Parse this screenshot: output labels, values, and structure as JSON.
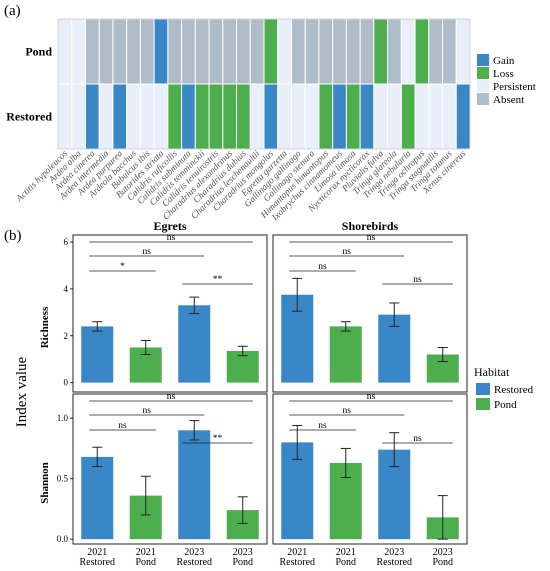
{
  "panel_labels": {
    "a": "(a)",
    "b": "(b)"
  },
  "colors": {
    "gain": "#3a87c7",
    "loss": "#4cae4c",
    "persistent": "#e8eff9",
    "absent": "#b1bcca",
    "restored": "#3a87c7",
    "pond": "#4cae4c"
  },
  "chart_data": [
    {
      "type": "heatmap",
      "rows": [
        "Pond",
        "Restored"
      ],
      "legend": {
        "gain": "Gain",
        "loss": "Loss",
        "persistent": "Persistent",
        "absent": "Absent"
      },
      "species": [
        "Actitis hypoleucos",
        "Ardea alba",
        "Ardea cinerea",
        "Ardea intermedia",
        "Ardea purpurea",
        "Ardeola bacchus",
        "Bubulcus ibis",
        "Butorides striata",
        "Calidris ruficollis",
        "Calidris subminuta",
        "Calidris temminckii",
        "Calidris tenuirostris",
        "Charadrius alexandrinus",
        "Charadrius dubius",
        "Charadrius leschenaultii",
        "Charadrius mongolus",
        "Egretta garzetta",
        "Gallinago gallinago",
        "Gallinago stenura",
        "Himantopus himantopus",
        "Ixobrychus cinnamomeus",
        "Limosa limosa",
        "Nycticorax nycticorax",
        "Pluvialis fulva",
        "Tringa glareola",
        "Tringa nebularia",
        "Tringa ochropus",
        "Tringa stagnatilis",
        "Tringa totanus",
        "Xenus cinereus"
      ],
      "cells": {
        "Pond": [
          "P",
          "P",
          "A",
          "A",
          "A",
          "A",
          "A",
          "G",
          "A",
          "A",
          "A",
          "A",
          "A",
          "A",
          "A",
          "L",
          "P",
          "A",
          "A",
          "A",
          "A",
          "A",
          "A",
          "L",
          "A",
          "P",
          "L",
          "A",
          "A",
          "P"
        ],
        "Restored": [
          "P",
          "P",
          "G",
          "P",
          "G",
          "P",
          "P",
          "P",
          "L",
          "G",
          "L",
          "L",
          "L",
          "L",
          "P",
          "G",
          "P",
          "P",
          "P",
          "L",
          "G",
          "L",
          "G",
          "P",
          "P",
          "L",
          "P",
          "P",
          "P",
          "G"
        ]
      }
    },
    {
      "type": "bar",
      "title": "Egrets",
      "ylabel": "Richness",
      "ylim": [
        -0.4,
        6.3
      ],
      "yticks": [
        0,
        2,
        4,
        6
      ],
      "categories": [
        "2021 Restored",
        "2021 Pond",
        "2023 Restored",
        "2023 Pond"
      ],
      "values": [
        2.4,
        1.5,
        3.3,
        1.35
      ],
      "errors": [
        0.2,
        0.3,
        0.35,
        0.2
      ],
      "comparisons": [
        {
          "from": 0,
          "to": 3,
          "label": "ns"
        },
        {
          "from": 0,
          "to": 2,
          "label": "ns"
        },
        {
          "from": 0,
          "to": 1,
          "label": "*"
        },
        {
          "from": 2,
          "to": 3,
          "label": "**"
        }
      ]
    },
    {
      "type": "bar",
      "title": "Shorebirds",
      "ylabel": "",
      "ylim": [
        -0.4,
        6.3
      ],
      "categories": [
        "2021 Restored",
        "2021 Pond",
        "2023 Restored",
        "2023 Pond"
      ],
      "values": [
        3.75,
        2.4,
        2.9,
        1.2
      ],
      "errors": [
        0.7,
        0.2,
        0.5,
        0.3
      ],
      "comparisons": [
        {
          "from": 0,
          "to": 3,
          "label": "ns"
        },
        {
          "from": 0,
          "to": 2,
          "label": "ns"
        },
        {
          "from": 0,
          "to": 1,
          "label": "ns"
        },
        {
          "from": 2,
          "to": 3,
          "label": "ns"
        }
      ]
    },
    {
      "type": "bar",
      "title": "",
      "ylabel": "Shannon",
      "ylim": [
        -0.04,
        1.2
      ],
      "yticks": [
        0.0,
        0.5,
        1.0
      ],
      "categories": [
        "2021 Restored",
        "2021 Pond",
        "2023 Restored",
        "2023 Pond"
      ],
      "values": [
        0.68,
        0.36,
        0.9,
        0.24
      ],
      "errors": [
        0.08,
        0.16,
        0.08,
        0.11
      ],
      "comparisons": [
        {
          "from": 0,
          "to": 3,
          "label": "ns"
        },
        {
          "from": 0,
          "to": 2,
          "label": "ns"
        },
        {
          "from": 0,
          "to": 1,
          "label": "ns"
        },
        {
          "from": 2,
          "to": 3,
          "label": "**"
        }
      ]
    },
    {
      "type": "bar",
      "title": "",
      "ylabel": "",
      "ylim": [
        -0.04,
        1.2
      ],
      "categories": [
        "2021 Restored",
        "2021 Pond",
        "2023 Restored",
        "2023 Pond"
      ],
      "values": [
        0.8,
        0.63,
        0.74,
        0.18
      ],
      "errors": [
        0.14,
        0.12,
        0.14,
        0.18
      ],
      "comparisons": [
        {
          "from": 0,
          "to": 3,
          "label": "ns"
        },
        {
          "from": 0,
          "to": 2,
          "label": "ns"
        },
        {
          "from": 0,
          "to": 1,
          "label": "ns"
        },
        {
          "from": 2,
          "to": 3,
          "label": "ns"
        }
      ]
    }
  ],
  "facet_xlabels": [
    [
      "2021",
      "Restored"
    ],
    [
      "2021",
      "Pond"
    ],
    [
      "2023",
      "Restored"
    ],
    [
      "2023",
      "Pond"
    ]
  ],
  "y_axis_title": "Index value",
  "legend_b": {
    "title": "Habitat",
    "items": [
      "Restored",
      "Pond"
    ]
  }
}
